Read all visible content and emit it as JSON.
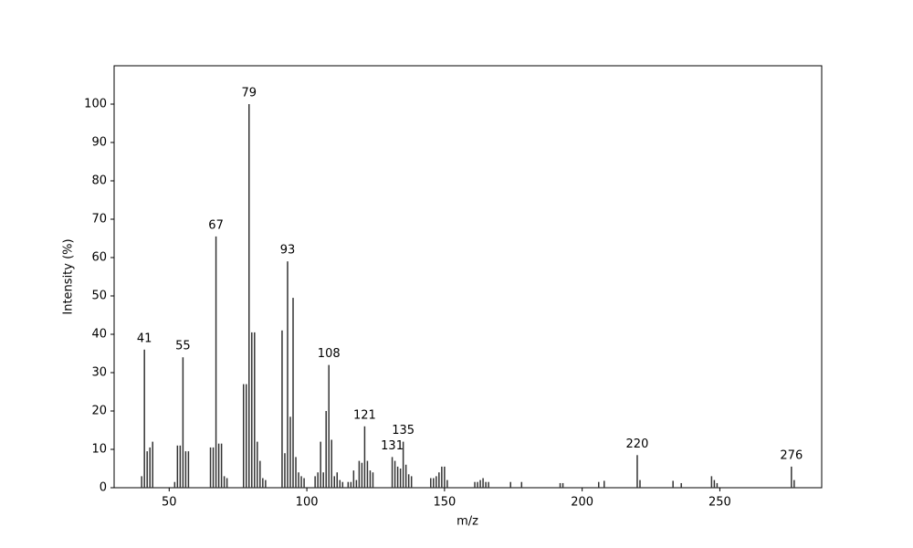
{
  "chart_data": {
    "type": "bar",
    "x_label": "m/z",
    "y_label": "Intensity (%)",
    "color": "#333333",
    "x": [
      40,
      41,
      42,
      43,
      44,
      52,
      53,
      54,
      55,
      56,
      57,
      65,
      66,
      67,
      68,
      69,
      70,
      71,
      77,
      78,
      79,
      80,
      81,
      82,
      83,
      84,
      85,
      91,
      92,
      93,
      94,
      95,
      96,
      97,
      98,
      99,
      103,
      104,
      105,
      106,
      107,
      108,
      109,
      110,
      111,
      112,
      113,
      115,
      116,
      117,
      118,
      119,
      120,
      121,
      122,
      123,
      124,
      131,
      132,
      133,
      134,
      135,
      136,
      137,
      138,
      145,
      146,
      147,
      148,
      149,
      150,
      151,
      161,
      162,
      163,
      164,
      165,
      166,
      174,
      178,
      192,
      193,
      206,
      208,
      220,
      221,
      233,
      236,
      247,
      248,
      249,
      276,
      277
    ],
    "values": [
      3,
      36,
      9.5,
      10.5,
      12,
      1.5,
      11,
      11,
      34,
      9.5,
      9.5,
      10.5,
      10.5,
      65.5,
      11.5,
      11.5,
      3,
      2.5,
      27,
      27,
      100,
      40.5,
      40.5,
      12,
      7,
      2.5,
      2,
      41,
      9,
      59,
      18.5,
      49.5,
      8,
      4,
      3,
      2.5,
      3,
      4,
      12,
      4,
      20,
      32,
      12.5,
      3,
      4,
      2,
      1.5,
      1.5,
      1.5,
      4.5,
      2,
      7,
      6.5,
      16,
      7,
      4.5,
      4,
      8,
      7,
      5.5,
      5,
      12,
      6,
      3.5,
      3,
      2.5,
      2.5,
      3,
      4,
      5.5,
      5.5,
      2,
      1.5,
      1.5,
      2,
      2.5,
      1.5,
      1.5,
      1.5,
      1.5,
      1.2,
      1.2,
      1.5,
      1.8,
      8.5,
      2,
      1.8,
      1.2,
      3,
      2,
      1.2,
      5.5,
      2
    ],
    "peak_labels": [
      41,
      55,
      67,
      79,
      93,
      108,
      121,
      131,
      135,
      220,
      276
    ],
    "xlim": [
      30,
      287
    ],
    "ylim": [
      0,
      110
    ],
    "xticks": [
      50,
      100,
      150,
      200,
      250
    ],
    "yticks": [
      0,
      10,
      20,
      30,
      40,
      50,
      60,
      70,
      80,
      90,
      100
    ],
    "grid": false
  }
}
